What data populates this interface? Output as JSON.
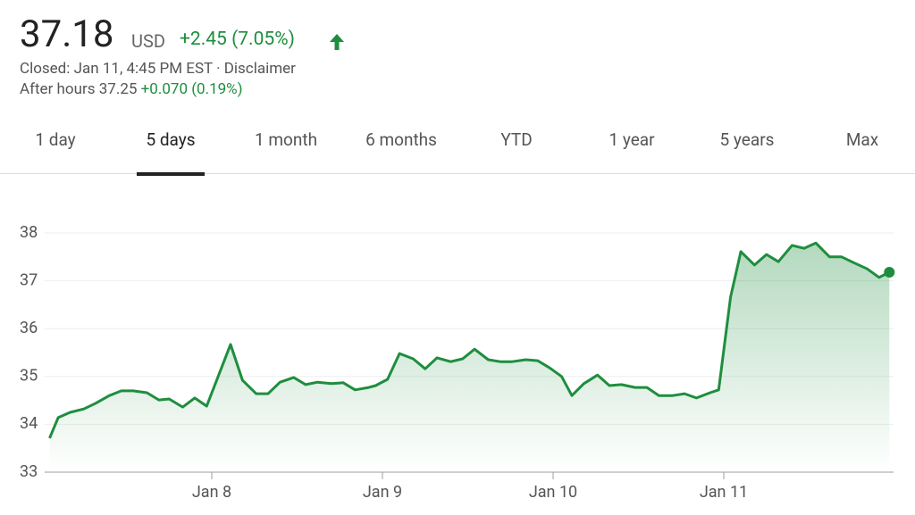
{
  "header": {
    "price": "37.18",
    "currency": "USD",
    "change": "+2.45 (7.05%)",
    "status": "Closed: Jan 11, 4:45 PM EST · Disclaimer",
    "after_hours": "After hours 37.25",
    "after_hours_change": "+0.070 (0.19%)"
  },
  "tabs": {
    "items": [
      "1 day",
      "5 days",
      "1 month",
      "6 months",
      "YTD",
      "1 year",
      "5 years",
      "Max"
    ],
    "active": 1
  },
  "chart_data": {
    "type": "line",
    "color": "#1e8e3e",
    "grid": true,
    "x": [
      0.05,
      0.1,
      0.17,
      0.25,
      0.32,
      0.4,
      0.47,
      0.54,
      0.62,
      0.69,
      0.75,
      0.83,
      0.9,
      0.97,
      1.11,
      1.18,
      1.26,
      1.33,
      1.4,
      1.48,
      1.55,
      1.62,
      1.7,
      1.77,
      1.84,
      1.92,
      1.96,
      2.03,
      2.1,
      2.18,
      2.25,
      2.32,
      2.4,
      2.47,
      2.54,
      2.62,
      2.69,
      2.76,
      2.84,
      2.91,
      2.98,
      3.05,
      3.11,
      3.18,
      3.26,
      3.33,
      3.4,
      3.48,
      3.55,
      3.62,
      3.7,
      3.77,
      3.84,
      3.92,
      3.97,
      4.04,
      4.1,
      4.18,
      4.25,
      4.32,
      4.4,
      4.47,
      4.54,
      4.62,
      4.69,
      4.76,
      4.84,
      4.91,
      4.97
    ],
    "values": [
      33.71,
      34.14,
      34.25,
      34.32,
      34.44,
      34.6,
      34.7,
      34.7,
      34.66,
      34.51,
      34.53,
      34.36,
      34.55,
      34.38,
      35.67,
      34.92,
      34.64,
      34.64,
      34.88,
      34.98,
      34.83,
      34.88,
      34.85,
      34.87,
      34.72,
      34.77,
      34.81,
      34.94,
      35.48,
      35.37,
      35.16,
      35.39,
      35.31,
      35.37,
      35.57,
      35.35,
      35.31,
      35.31,
      35.35,
      35.33,
      35.18,
      35.0,
      34.6,
      34.85,
      35.03,
      34.81,
      34.83,
      34.77,
      34.77,
      34.6,
      34.6,
      34.64,
      34.55,
      34.66,
      34.72,
      36.66,
      37.61,
      37.33,
      37.55,
      37.4,
      37.74,
      37.68,
      37.79,
      37.5,
      37.5,
      37.38,
      37.25,
      37.07,
      37.18
    ],
    "xlim": [
      0,
      5
    ],
    "xticks": [
      {
        "value": 1,
        "label": "Jan 8"
      },
      {
        "value": 2,
        "label": "Jan 9"
      },
      {
        "value": 3,
        "label": "Jan 10"
      },
      {
        "value": 4,
        "label": "Jan 11"
      }
    ],
    "ylim": [
      33,
      38
    ],
    "yticks": [
      33,
      34,
      35,
      36,
      37,
      38
    ]
  }
}
